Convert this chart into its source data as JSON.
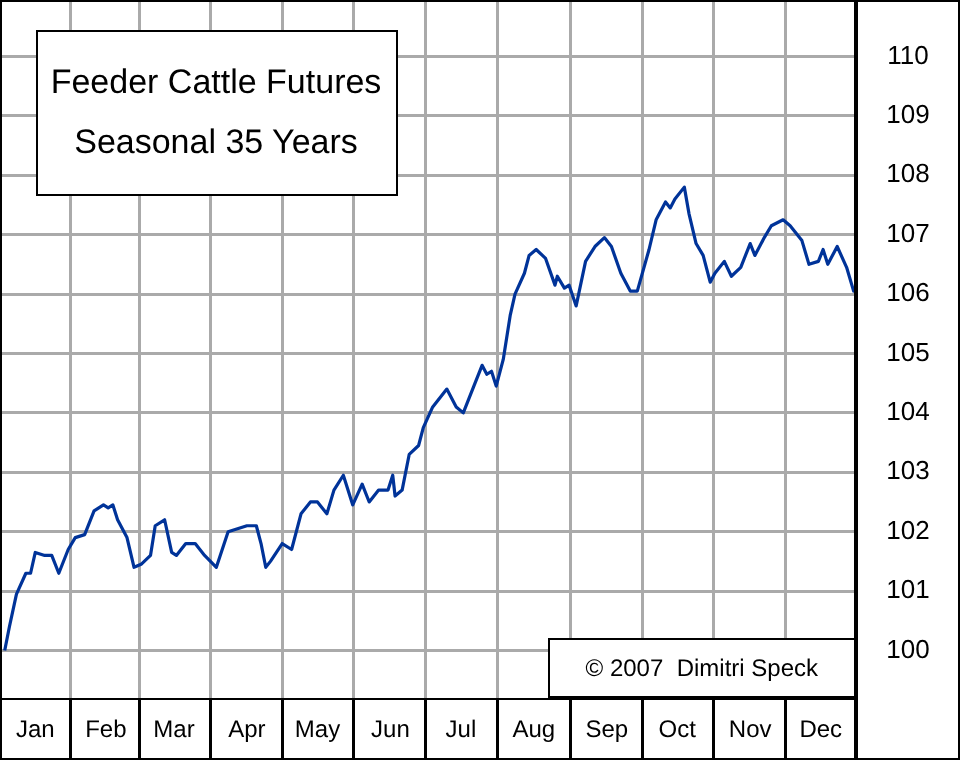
{
  "chart_data": {
    "type": "line",
    "title": "Feeder Cattle Futures",
    "subtitle": "Seasonal 35 Years",
    "annotations": [
      "© 2007  Dimitri Speck"
    ],
    "x": [
      "--01-03",
      "--01-05",
      "--01-08",
      "--01-12",
      "--01-14",
      "--01-16",
      "--01-20",
      "--01-23",
      "--01-26",
      "--01-30",
      "--02-02",
      "--02-06",
      "--02-10",
      "--02-14",
      "--02-16",
      "--02-18",
      "--02-20",
      "--02-24",
      "--02-27",
      "--03-02",
      "--03-06",
      "--03-08",
      "--03-12",
      "--03-15",
      "--03-17",
      "--03-21",
      "--03-25",
      "--03-29",
      "--04-03",
      "--04-08",
      "--04-12",
      "--04-16",
      "--04-20",
      "--04-22",
      "--04-24",
      "--04-26",
      "--05-01",
      "--05-05",
      "--05-09",
      "--05-13",
      "--05-16",
      "--05-20",
      "--05-23",
      "--05-27",
      "--05-31",
      "--06-04",
      "--06-07",
      "--06-11",
      "--06-15",
      "--06-17",
      "--06-18",
      "--06-21",
      "--06-24",
      "--06-28",
      "--06-30",
      "--07-04",
      "--07-10",
      "--07-14",
      "--07-17",
      "--07-22",
      "--07-25",
      "--07-27",
      "--07-29",
      "--07-31",
      "--08-03",
      "--08-06",
      "--08-08",
      "--08-12",
      "--08-14",
      "--08-17",
      "--08-21",
      "--08-25",
      "--08-26",
      "--08-29",
      "--08-31",
      "--09-03",
      "--09-07",
      "--09-11",
      "--09-15",
      "--09-18",
      "--09-22",
      "--09-26",
      "--09-29",
      "--10-04",
      "--10-07",
      "--10-11",
      "--10-13",
      "--10-15",
      "--10-19",
      "--10-21",
      "--10-24",
      "--10-27",
      "--10-30",
      "--11-01",
      "--11-05",
      "--11-08",
      "--11-12",
      "--11-16",
      "--11-18",
      "--11-22",
      "--11-25",
      "--11-30",
      "--12-03",
      "--12-08",
      "--12-11",
      "--12-15",
      "--12-17",
      "--12-19",
      "--12-23",
      "--12-27",
      "--12-30",
      "--12-31"
    ],
    "series": [
      {
        "color": "#003399",
        "values": [
          100.0,
          100.4,
          100.95,
          101.3,
          101.3,
          101.65,
          101.6,
          101.6,
          101.3,
          101.7,
          101.9,
          101.95,
          102.35,
          102.45,
          102.4,
          102.45,
          102.2,
          101.9,
          101.4,
          101.45,
          101.6,
          102.1,
          102.2,
          101.65,
          101.6,
          101.8,
          101.8,
          101.6,
          101.4,
          102.0,
          102.05,
          102.1,
          102.1,
          101.8,
          101.4,
          101.5,
          101.8,
          101.7,
          102.3,
          102.5,
          102.5,
          102.3,
          102.7,
          102.95,
          102.45,
          102.8,
          102.5,
          102.7,
          102.7,
          102.95,
          102.6,
          102.7,
          103.3,
          103.45,
          103.75,
          104.1,
          104.4,
          104.1,
          104.0,
          104.5,
          104.8,
          104.65,
          104.7,
          104.45,
          104.9,
          105.65,
          106.0,
          106.35,
          106.65,
          106.75,
          106.6,
          106.15,
          106.3,
          106.1,
          106.15,
          105.8,
          106.55,
          106.8,
          106.95,
          106.8,
          106.35,
          106.05,
          106.05,
          106.75,
          107.25,
          107.55,
          107.45,
          107.6,
          107.8,
          107.35,
          106.85,
          106.65,
          106.2,
          106.35,
          106.55,
          106.3,
          106.45,
          106.85,
          106.65,
          106.95,
          107.15,
          107.25,
          107.15,
          106.9,
          106.5,
          106.55,
          106.75,
          106.5,
          106.8,
          106.45,
          106.05,
          106.1
        ]
      }
    ],
    "xlim": [
      "--01-01",
      "--12-31"
    ],
    "xticks": [
      {
        "value": "--01-16",
        "label": "Jan"
      },
      {
        "value": "--02-15",
        "label": "Feb"
      },
      {
        "value": "--03-16",
        "label": "Mar"
      },
      {
        "value": "--04-16",
        "label": "Apr"
      },
      {
        "value": "--05-16",
        "label": "May"
      },
      {
        "value": "--06-16",
        "label": "Jun"
      },
      {
        "value": "--07-16",
        "label": "Jul"
      },
      {
        "value": "--08-16",
        "label": "Aug"
      },
      {
        "value": "--09-16",
        "label": "Sep"
      },
      {
        "value": "--10-16",
        "label": "Oct"
      },
      {
        "value": "--11-16",
        "label": "Nov"
      },
      {
        "value": "--12-16",
        "label": "Dec"
      }
    ],
    "ylim": [
      99.2,
      110.95
    ],
    "yticks": [
      100,
      101,
      102,
      103,
      104,
      105,
      106,
      107,
      108,
      109,
      110
    ],
    "grid": true,
    "legend": false,
    "marker": "none",
    "line_style": "solid"
  }
}
